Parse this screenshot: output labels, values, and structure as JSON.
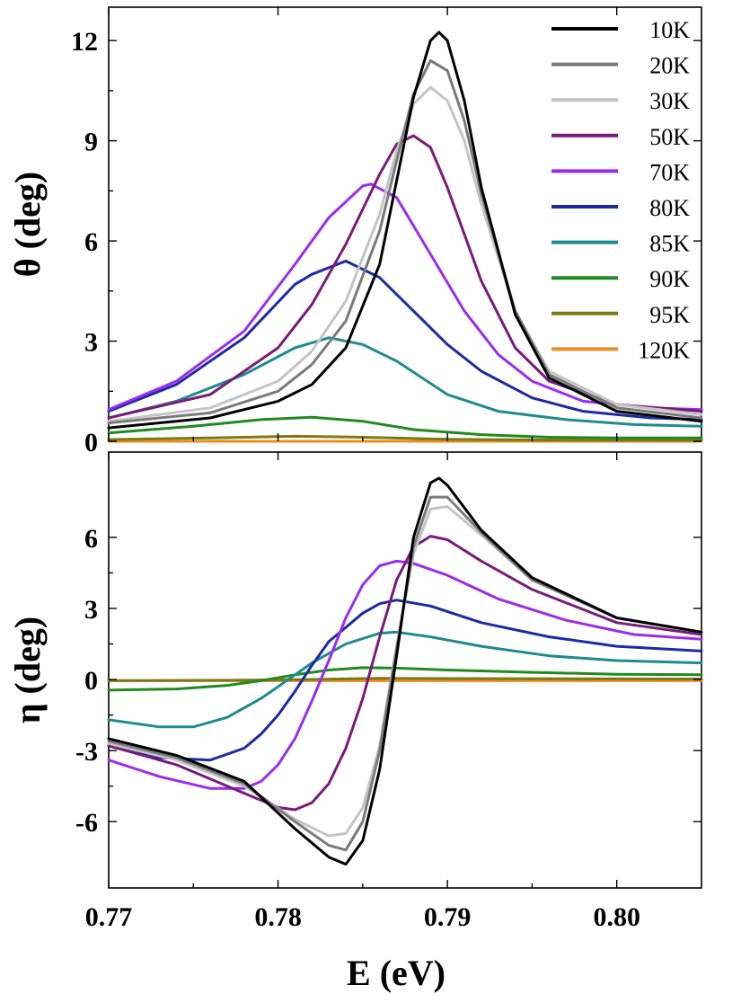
{
  "chart_data": [
    {
      "panel": "top",
      "type": "line",
      "xlabel": "",
      "ylabel": "θ (deg)",
      "xlim": [
        0.77,
        0.805
      ],
      "ylim": [
        0,
        13
      ],
      "yticks": [
        0,
        3,
        6,
        9,
        12
      ],
      "ytick_labels": [
        "0",
        "3",
        "6",
        "9",
        "12"
      ],
      "legend": {
        "placement": "top-right"
      },
      "series": [
        {
          "name": "10K",
          "color": "#000000",
          "x": [
            0.77,
            0.776,
            0.78,
            0.782,
            0.784,
            0.786,
            0.787,
            0.788,
            0.789,
            0.7895,
            0.79,
            0.791,
            0.792,
            0.794,
            0.796,
            0.8,
            0.805
          ],
          "y": [
            0.4,
            0.7,
            1.2,
            1.7,
            2.8,
            5.3,
            7.8,
            10.3,
            12.0,
            12.25,
            12.0,
            10.2,
            7.6,
            3.8,
            1.9,
            0.9,
            0.6
          ]
        },
        {
          "name": "20K",
          "color": "#7a7a7a",
          "x": [
            0.77,
            0.776,
            0.78,
            0.782,
            0.784,
            0.786,
            0.787,
            0.788,
            0.789,
            0.79,
            0.791,
            0.792,
            0.794,
            0.796,
            0.8,
            0.805
          ],
          "y": [
            0.55,
            0.85,
            1.5,
            2.3,
            3.6,
            6.3,
            8.4,
            10.4,
            11.4,
            11.1,
            9.6,
            7.4,
            3.9,
            2.0,
            1.0,
            0.7
          ]
        },
        {
          "name": "30K",
          "color": "#c4c4c4",
          "x": [
            0.77,
            0.776,
            0.78,
            0.782,
            0.784,
            0.786,
            0.787,
            0.788,
            0.789,
            0.79,
            0.791,
            0.792,
            0.794,
            0.796,
            0.8,
            0.805
          ],
          "y": [
            0.6,
            1.0,
            1.8,
            2.7,
            4.2,
            6.8,
            8.7,
            10.1,
            10.6,
            10.2,
            9.0,
            7.1,
            3.9,
            2.1,
            1.1,
            0.8
          ]
        },
        {
          "name": "50K",
          "color": "#7a1a7a",
          "x": [
            0.77,
            0.776,
            0.78,
            0.782,
            0.784,
            0.786,
            0.787,
            0.788,
            0.789,
            0.79,
            0.792,
            0.794,
            0.796,
            0.8,
            0.805
          ],
          "y": [
            0.7,
            1.4,
            2.8,
            4.1,
            5.9,
            8.0,
            8.9,
            9.15,
            8.8,
            7.6,
            4.8,
            2.8,
            1.8,
            1.1,
            0.9
          ]
        },
        {
          "name": "70K",
          "color": "#9a2cf0",
          "x": [
            0.77,
            0.774,
            0.778,
            0.781,
            0.783,
            0.785,
            0.7855,
            0.787,
            0.789,
            0.791,
            0.793,
            0.795,
            0.798,
            0.802,
            0.805
          ],
          "y": [
            0.95,
            1.8,
            3.3,
            5.3,
            6.7,
            7.65,
            7.7,
            7.3,
            5.6,
            3.9,
            2.6,
            1.8,
            1.2,
            1.0,
            0.95
          ]
        },
        {
          "name": "80K",
          "color": "#1c2aa8",
          "x": [
            0.77,
            0.774,
            0.778,
            0.781,
            0.782,
            0.784,
            0.786,
            0.788,
            0.79,
            0.792,
            0.795,
            0.798,
            0.802,
            0.805
          ],
          "y": [
            0.9,
            1.7,
            3.1,
            4.7,
            5.0,
            5.4,
            4.9,
            3.9,
            2.9,
            2.1,
            1.3,
            0.9,
            0.7,
            0.65
          ]
        },
        {
          "name": "85K",
          "color": "#1e8c8c",
          "x": [
            0.77,
            0.774,
            0.778,
            0.781,
            0.783,
            0.785,
            0.787,
            0.79,
            0.793,
            0.797,
            0.801,
            0.805
          ],
          "y": [
            0.7,
            1.2,
            2.0,
            2.8,
            3.1,
            2.9,
            2.4,
            1.4,
            0.9,
            0.65,
            0.5,
            0.45
          ]
        },
        {
          "name": "90K",
          "color": "#1f8a1f",
          "x": [
            0.77,
            0.775,
            0.779,
            0.782,
            0.785,
            0.788,
            0.792,
            0.796,
            0.8,
            0.805
          ],
          "y": [
            0.25,
            0.45,
            0.65,
            0.72,
            0.6,
            0.35,
            0.2,
            0.12,
            0.1,
            0.1
          ]
        },
        {
          "name": "95K",
          "color": "#7a7a1a",
          "x": [
            0.77,
            0.776,
            0.781,
            0.785,
            0.79,
            0.795,
            0.805
          ],
          "y": [
            0.05,
            0.1,
            0.15,
            0.12,
            0.06,
            0.04,
            0.03
          ]
        },
        {
          "name": "120K",
          "color": "#f08c1a",
          "x": [
            0.77,
            0.805
          ],
          "y": [
            0.0,
            0.0
          ]
        }
      ]
    },
    {
      "panel": "bottom",
      "type": "line",
      "xlabel": "E (eV)",
      "ylabel": "η (deg)",
      "xlim": [
        0.77,
        0.805
      ],
      "ylim": [
        -8.8,
        9.6
      ],
      "yticks": [
        -6,
        -3,
        0,
        3,
        6
      ],
      "ytick_labels": [
        "-6",
        "-3",
        "0",
        "3",
        "6"
      ],
      "xticks": [
        0.77,
        0.78,
        0.79,
        0.8
      ],
      "xtick_labels": [
        "0.77",
        "0.78",
        "0.79",
        "0.80"
      ],
      "series": [
        {
          "name": "10K",
          "color": "#000000",
          "x": [
            0.77,
            0.774,
            0.778,
            0.781,
            0.783,
            0.784,
            0.785,
            0.786,
            0.787,
            0.788,
            0.789,
            0.7895,
            0.79,
            0.792,
            0.795,
            0.8,
            0.805
          ],
          "y": [
            -2.5,
            -3.2,
            -4.3,
            -6.3,
            -7.5,
            -7.8,
            -6.8,
            -3.8,
            1.0,
            6.0,
            8.3,
            8.5,
            8.2,
            6.3,
            4.3,
            2.6,
            2.0
          ]
        },
        {
          "name": "20K",
          "color": "#7a7a7a",
          "x": [
            0.77,
            0.774,
            0.778,
            0.781,
            0.783,
            0.784,
            0.785,
            0.786,
            0.787,
            0.788,
            0.789,
            0.79,
            0.792,
            0.795,
            0.8,
            0.805
          ],
          "y": [
            -2.6,
            -3.3,
            -4.4,
            -6.0,
            -7.0,
            -7.2,
            -6.0,
            -3.0,
            1.3,
            5.6,
            7.7,
            7.7,
            6.2,
            4.2,
            2.6,
            2.0
          ]
        },
        {
          "name": "30K",
          "color": "#c4c4c4",
          "x": [
            0.77,
            0.774,
            0.778,
            0.781,
            0.783,
            0.784,
            0.785,
            0.786,
            0.787,
            0.788,
            0.789,
            0.79,
            0.792,
            0.795,
            0.8,
            0.805
          ],
          "y": [
            -2.7,
            -3.4,
            -4.5,
            -5.9,
            -6.6,
            -6.5,
            -5.4,
            -2.8,
            1.4,
            5.3,
            7.2,
            7.3,
            6.1,
            4.2,
            2.6,
            2.0
          ]
        },
        {
          "name": "50K",
          "color": "#7a1a7a",
          "x": [
            0.77,
            0.774,
            0.778,
            0.78,
            0.781,
            0.782,
            0.783,
            0.784,
            0.785,
            0.786,
            0.787,
            0.788,
            0.789,
            0.79,
            0.792,
            0.795,
            0.8,
            0.805
          ],
          "y": [
            -2.8,
            -3.6,
            -4.8,
            -5.4,
            -5.5,
            -5.2,
            -4.4,
            -2.9,
            -0.8,
            1.8,
            4.2,
            5.6,
            6.05,
            5.9,
            5.0,
            3.8,
            2.4,
            1.9
          ]
        },
        {
          "name": "70K",
          "color": "#9a2cf0",
          "x": [
            0.77,
            0.773,
            0.776,
            0.778,
            0.779,
            0.78,
            0.781,
            0.782,
            0.783,
            0.784,
            0.785,
            0.786,
            0.787,
            0.788,
            0.79,
            0.793,
            0.797,
            0.801,
            0.805
          ],
          "y": [
            -3.4,
            -4.1,
            -4.6,
            -4.6,
            -4.3,
            -3.6,
            -2.5,
            -0.9,
            0.8,
            2.6,
            4.0,
            4.8,
            5.0,
            4.9,
            4.4,
            3.4,
            2.5,
            1.9,
            1.7
          ]
        },
        {
          "name": "80K",
          "color": "#1c2aa8",
          "x": [
            0.77,
            0.773,
            0.776,
            0.778,
            0.779,
            0.78,
            0.781,
            0.782,
            0.783,
            0.785,
            0.786,
            0.787,
            0.789,
            0.792,
            0.796,
            0.8,
            0.805
          ],
          "y": [
            -2.8,
            -3.3,
            -3.4,
            -2.9,
            -2.3,
            -1.5,
            -0.5,
            0.6,
            1.6,
            2.8,
            3.2,
            3.35,
            3.1,
            2.4,
            1.8,
            1.4,
            1.2
          ]
        },
        {
          "name": "85K",
          "color": "#1e8c8c",
          "x": [
            0.77,
            0.773,
            0.775,
            0.777,
            0.779,
            0.78,
            0.782,
            0.784,
            0.786,
            0.787,
            0.789,
            0.792,
            0.796,
            0.8,
            0.805
          ],
          "y": [
            -1.7,
            -2.0,
            -2.0,
            -1.6,
            -0.8,
            -0.3,
            0.7,
            1.5,
            1.95,
            2.0,
            1.8,
            1.4,
            1.0,
            0.8,
            0.7
          ]
        },
        {
          "name": "90K",
          "color": "#1f8a1f",
          "x": [
            0.77,
            0.774,
            0.777,
            0.779,
            0.781,
            0.783,
            0.785,
            0.787,
            0.79,
            0.795,
            0.8,
            0.805
          ],
          "y": [
            -0.45,
            -0.4,
            -0.25,
            -0.05,
            0.2,
            0.4,
            0.5,
            0.48,
            0.4,
            0.3,
            0.22,
            0.2
          ]
        },
        {
          "name": "95K",
          "color": "#7a7a1a",
          "x": [
            0.77,
            0.778,
            0.782,
            0.786,
            0.79,
            0.805
          ],
          "y": [
            -0.05,
            -0.03,
            0.0,
            0.05,
            0.04,
            0.02
          ]
        },
        {
          "name": "120K",
          "color": "#f08c1a",
          "x": [
            0.77,
            0.805
          ],
          "y": [
            -0.05,
            -0.05
          ]
        }
      ]
    }
  ]
}
